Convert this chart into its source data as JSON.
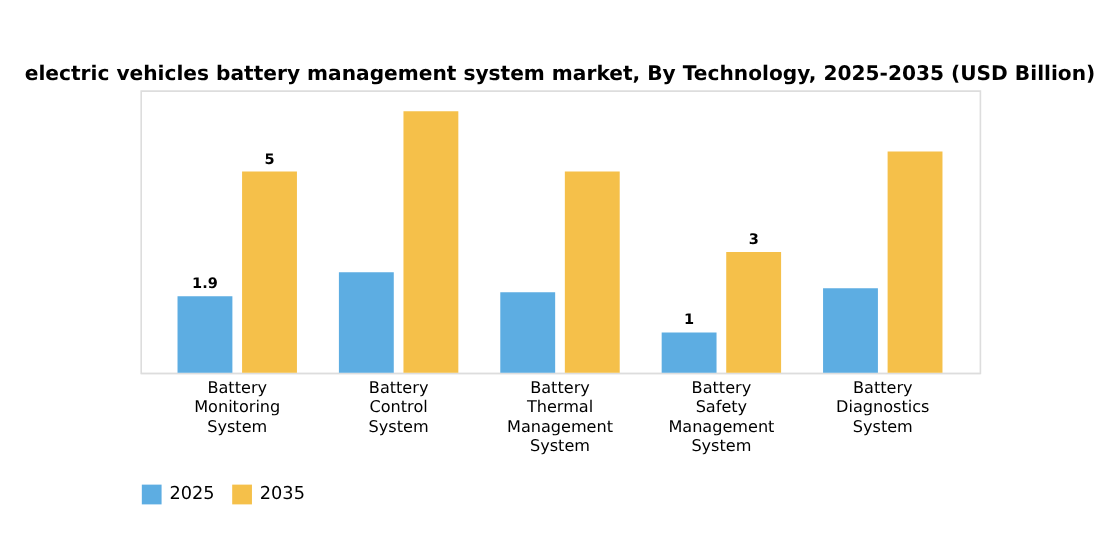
{
  "chart_data": {
    "type": "bar",
    "title": "electric vehicles battery management system market, By Technology, 2025-2035 (USD Billion)",
    "categories": [
      "Battery Monitoring System",
      "Battery Control System",
      "Battery Thermal Management System",
      "Battery Safety Management System",
      "Battery Diagnostics System"
    ],
    "series": [
      {
        "name": "2025",
        "color": "#5dade2",
        "values": [
          1.9,
          2.5,
          2.0,
          1.0,
          2.1
        ],
        "value_labels": [
          "1.9",
          null,
          null,
          "1",
          null
        ]
      },
      {
        "name": "2035",
        "color": "#f5c04a",
        "values": [
          5.0,
          6.5,
          5.0,
          3.0,
          5.5
        ],
        "value_labels": [
          "5",
          null,
          null,
          "3",
          null
        ]
      }
    ],
    "legend": "bottom",
    "grid": false
  }
}
